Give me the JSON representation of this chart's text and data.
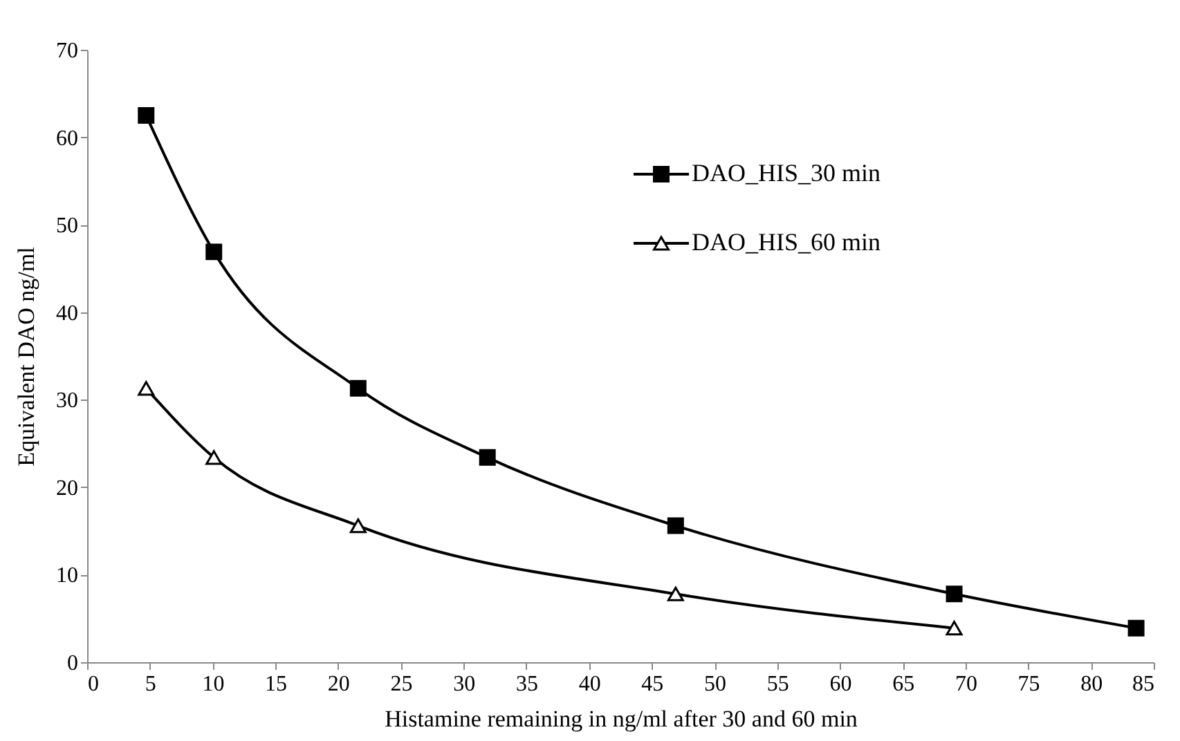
{
  "chart_data": {
    "type": "line",
    "xlabel": "Histamine remaining in ng/ml after 30 and 60 min",
    "ylabel": "Equivalent DAO ng/ml",
    "xlim": [
      0,
      85
    ],
    "xticks": [
      0,
      5,
      10,
      15,
      20,
      25,
      30,
      35,
      40,
      45,
      50,
      55,
      60,
      65,
      70,
      75,
      80,
      85
    ],
    "ylim": [
      0,
      70
    ],
    "yticks": [
      0,
      10,
      20,
      30,
      40,
      50,
      60,
      70
    ],
    "grid": false,
    "legend": "top right",
    "line_style": "solid",
    "series": [
      {
        "name": "DAO_HIS_30 min",
        "color": "#000000",
        "marker": "square",
        "x": [
          4.7,
          10.1,
          21.6,
          31.9,
          46.9,
          69.1,
          83.6
        ],
        "values": [
          62.5,
          46.9,
          31.3,
          23.4,
          15.6,
          7.8,
          3.9
        ]
      },
      {
        "name": "DAO_HIS_60 min",
        "color": "#000000",
        "marker": "triangle",
        "x": [
          4.7,
          10.1,
          21.6,
          46.9,
          69.1
        ],
        "values": [
          31.3,
          23.4,
          15.6,
          7.8,
          3.9
        ]
      }
    ]
  }
}
